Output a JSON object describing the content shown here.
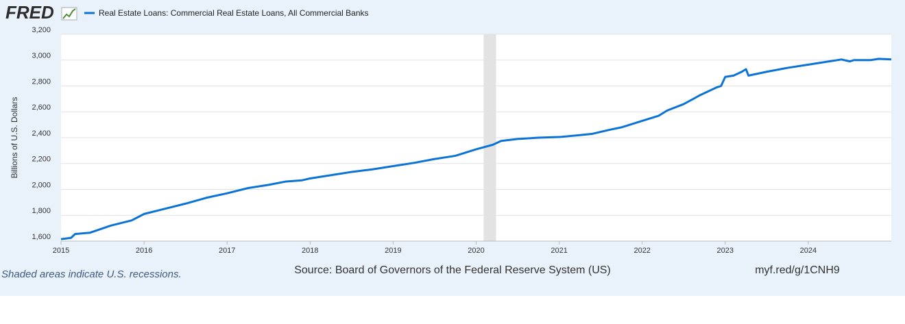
{
  "brand": "FRED",
  "chart_data": {
    "type": "line",
    "y_label": "Billions of U.S. Dollars",
    "x": [
      2015.0,
      2015.12,
      2015.17,
      2015.35,
      2015.6,
      2015.85,
      2016.0,
      2016.25,
      2016.5,
      2016.75,
      2017.0,
      2017.25,
      2017.5,
      2017.7,
      2017.9,
      2018.0,
      2018.25,
      2018.5,
      2018.75,
      2019.0,
      2019.25,
      2019.5,
      2019.75,
      2020.0,
      2020.2,
      2020.3,
      2020.5,
      2020.75,
      2021.0,
      2021.25,
      2021.4,
      2021.6,
      2021.75,
      2022.0,
      2022.2,
      2022.3,
      2022.5,
      2022.7,
      2022.9,
      2022.95,
      2023.0,
      2023.1,
      2023.2,
      2023.25,
      2023.28,
      2023.5,
      2023.75,
      2024.0,
      2024.25,
      2024.4,
      2024.5,
      2024.55,
      2024.75,
      2024.85,
      2025.0
    ],
    "series": [
      {
        "name": "Real Estate Loans: Commercial Real Estate Loans, All Commercial Banks",
        "color": "#0b73d6",
        "values": [
          1615,
          1625,
          1655,
          1665,
          1720,
          1760,
          1810,
          1850,
          1890,
          1935,
          1970,
          2010,
          2035,
          2060,
          2070,
          2085,
          2110,
          2135,
          2155,
          2180,
          2205,
          2235,
          2260,
          2310,
          2345,
          2375,
          2390,
          2400,
          2405,
          2420,
          2430,
          2460,
          2480,
          2530,
          2570,
          2610,
          2660,
          2730,
          2790,
          2800,
          2870,
          2880,
          2910,
          2930,
          2880,
          2910,
          2940,
          2965,
          2990,
          3005,
          2990,
          3000,
          3000,
          3010,
          3005
        ]
      }
    ],
    "xlim": [
      2015,
      2025
    ],
    "xticks": [
      2015,
      2016,
      2017,
      2018,
      2019,
      2020,
      2021,
      2022,
      2023,
      2024
    ],
    "ylim": [
      1600,
      3200
    ],
    "yticks": [
      {
        "value": 1600,
        "label": "1,600"
      },
      {
        "value": 1800,
        "label": "1,800"
      },
      {
        "value": 2000,
        "label": "2,000"
      },
      {
        "value": 2200,
        "label": "2,200"
      },
      {
        "value": 2400,
        "label": "2,400"
      },
      {
        "value": 2600,
        "label": "2,600"
      },
      {
        "value": 2800,
        "label": "2,800"
      },
      {
        "value": 3000,
        "label": "3,000"
      },
      {
        "value": 3200,
        "label": "3,200"
      }
    ],
    "recessions": [
      [
        2020.09,
        2020.24
      ]
    ],
    "grid": true
  },
  "footer": {
    "note": "Shaded areas indicate U.S. recessions.",
    "source": "Source: Board of Governors of the Federal Reserve System (US)",
    "link": "myf.red/g/1CNH9"
  }
}
